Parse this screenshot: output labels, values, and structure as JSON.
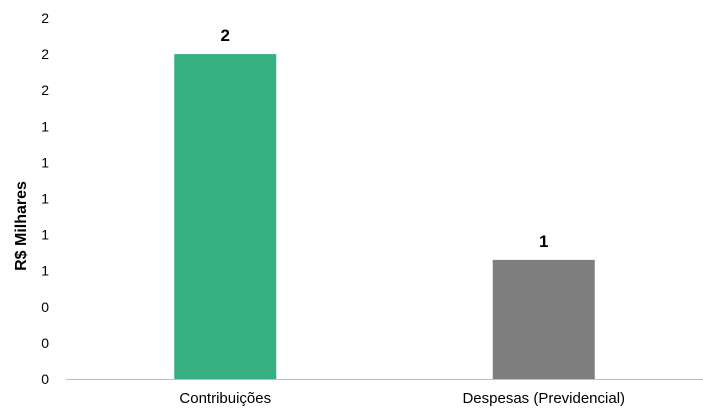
{
  "chart_data": {
    "type": "bar",
    "title": "",
    "xlabel": "",
    "ylabel": "R$ Milhares",
    "categories": [
      "Contribuições",
      "Despesas (Previdencial)"
    ],
    "values": [
      1.8,
      0.66
    ],
    "data_labels": [
      "2",
      "1"
    ],
    "colors": [
      "#36b081",
      "#7f7f7f"
    ],
    "ylim": [
      0,
      2.0
    ],
    "yticks": [
      0,
      0.2,
      0.4,
      0.6,
      0.8,
      1.0,
      1.2,
      1.4,
      1.6,
      1.8,
      2.0
    ],
    "ytick_labels": [
      "0",
      "0",
      "0",
      "1",
      "1",
      "1",
      "1",
      "1",
      "2",
      "2",
      "2"
    ],
    "grid": false,
    "legend": "none"
  }
}
